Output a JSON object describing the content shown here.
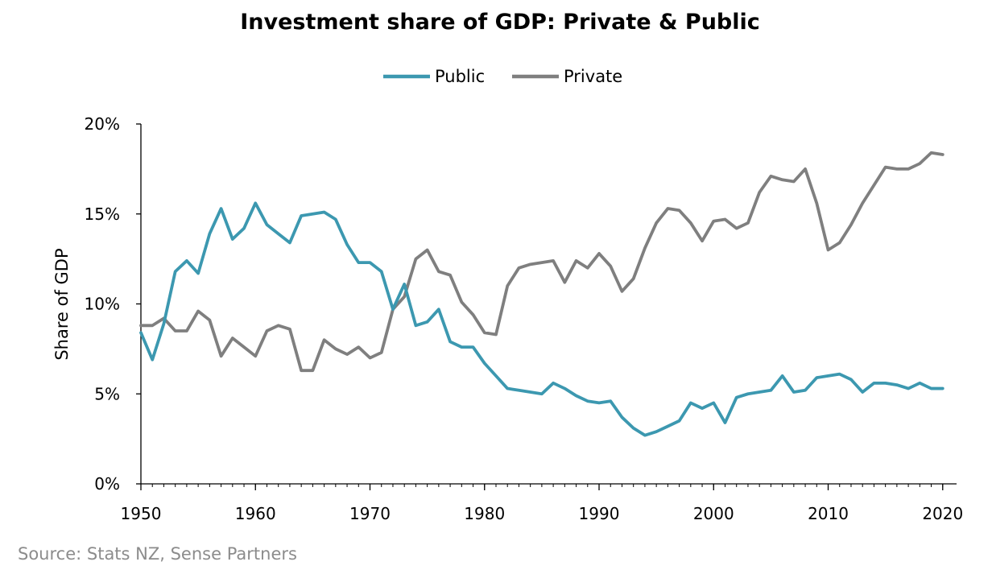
{
  "chart_data": {
    "type": "line",
    "title": "Investment share of GDP: Private & Public",
    "ylabel": "Share of GDP",
    "xlabel": "",
    "xlim": [
      1950,
      2021
    ],
    "ylim": [
      0,
      20
    ],
    "x_ticks": [
      "1950",
      "1960",
      "1970",
      "1980",
      "1990",
      "2000",
      "2010",
      "2020"
    ],
    "x_tick_values": [
      1950,
      1960,
      1970,
      1980,
      1990,
      2000,
      2010,
      2020
    ],
    "y_ticks": [
      "0%",
      "5%",
      "10%",
      "15%",
      "20%"
    ],
    "y_tick_values": [
      0,
      5,
      10,
      15,
      20
    ],
    "legend_position": "top-center",
    "x": [
      1950,
      1951,
      1952,
      1953,
      1954,
      1955,
      1956,
      1957,
      1958,
      1959,
      1960,
      1961,
      1962,
      1963,
      1964,
      1965,
      1966,
      1967,
      1968,
      1969,
      1970,
      1971,
      1972,
      1973,
      1974,
      1975,
      1976,
      1977,
      1978,
      1979,
      1980,
      1981,
      1982,
      1983,
      1984,
      1985,
      1986,
      1987,
      1988,
      1989,
      1990,
      1991,
      1992,
      1993,
      1994,
      1995,
      1996,
      1997,
      1998,
      1999,
      2000,
      2001,
      2002,
      2003,
      2004,
      2005,
      2006,
      2007,
      2008,
      2009,
      2010,
      2011,
      2012,
      2013,
      2014,
      2015,
      2016,
      2017,
      2018,
      2019,
      2020
    ],
    "series": [
      {
        "name": "Public",
        "color": "#3c98b0",
        "values": [
          8.4,
          6.9,
          8.9,
          11.8,
          12.4,
          11.7,
          13.9,
          15.3,
          13.6,
          14.2,
          15.6,
          14.4,
          13.9,
          13.4,
          14.9,
          15.0,
          15.1,
          14.7,
          13.3,
          12.3,
          12.3,
          11.8,
          9.7,
          11.1,
          8.8,
          9.0,
          9.7,
          7.9,
          7.6,
          7.6,
          6.7,
          6.0,
          5.3,
          5.2,
          5.1,
          5.0,
          5.6,
          5.3,
          4.9,
          4.6,
          4.5,
          4.6,
          3.7,
          3.1,
          2.7,
          2.9,
          3.2,
          3.5,
          4.5,
          4.2,
          4.5,
          3.4,
          4.8,
          5.0,
          5.1,
          5.2,
          6.0,
          5.1,
          5.2,
          5.9,
          6.0,
          6.1,
          5.8,
          5.1,
          5.6,
          5.6,
          5.5,
          5.3,
          5.6,
          5.3,
          5.3
        ]
      },
      {
        "name": "Private",
        "color": "#7f7f7f",
        "values": [
          8.8,
          8.8,
          9.2,
          8.5,
          8.5,
          9.6,
          9.1,
          7.1,
          8.1,
          7.6,
          7.1,
          8.5,
          8.8,
          8.6,
          6.3,
          6.3,
          8.0,
          7.5,
          7.2,
          7.6,
          7.0,
          7.3,
          9.7,
          10.4,
          12.5,
          13.0,
          11.8,
          11.6,
          10.1,
          9.4,
          8.4,
          8.3,
          11.0,
          12.0,
          12.2,
          12.3,
          12.4,
          11.2,
          12.4,
          12.0,
          12.8,
          12.1,
          10.7,
          11.4,
          13.1,
          14.5,
          15.3,
          15.2,
          14.5,
          13.5,
          14.6,
          14.7,
          14.2,
          14.5,
          16.2,
          17.1,
          16.9,
          16.8,
          17.5,
          15.6,
          13.0,
          13.4,
          14.4,
          15.6,
          16.6,
          17.6,
          17.5,
          17.5,
          17.8,
          18.4,
          18.3
        ]
      }
    ]
  },
  "source_note": "Source: Stats NZ, Sense Partners"
}
